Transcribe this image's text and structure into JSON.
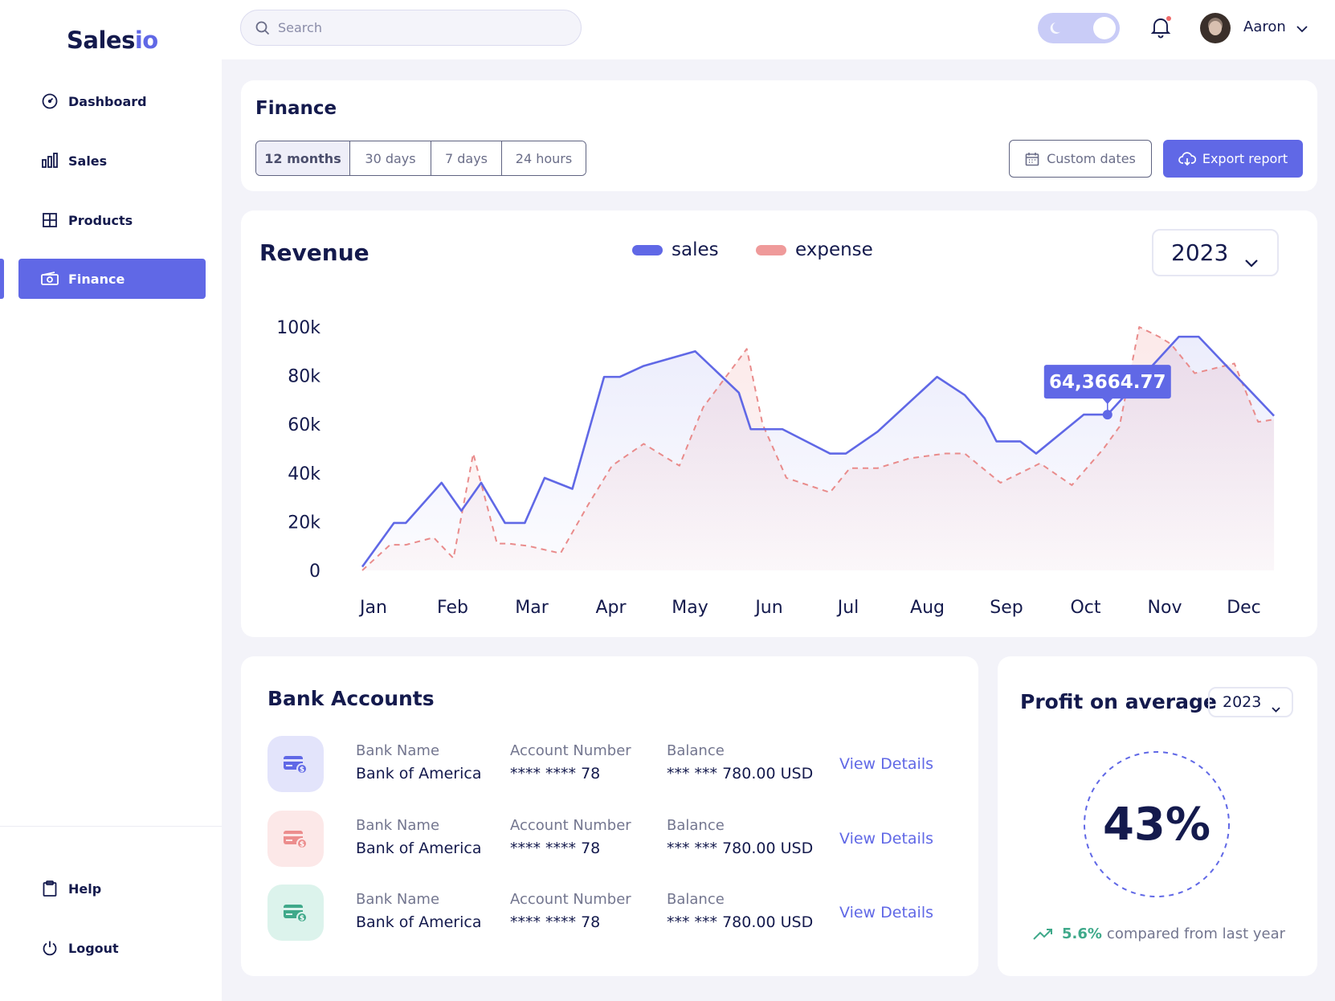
{
  "app": {
    "logo_main": "Sales",
    "logo_accent": "io"
  },
  "sidebar": {
    "items": [
      {
        "label": "Dashboard",
        "icon": "gauge-icon"
      },
      {
        "label": "Sales",
        "icon": "bar-chart-icon"
      },
      {
        "label": "Products",
        "icon": "grid-icon"
      },
      {
        "label": "Finance",
        "icon": "money-icon",
        "active": true
      }
    ],
    "footer": [
      {
        "label": "Help",
        "icon": "clipboard-icon"
      },
      {
        "label": "Logout",
        "icon": "power-icon"
      }
    ]
  },
  "topbar": {
    "search_placeholder": "Search",
    "theme_toggle": "dark-mode",
    "user_name": "Aaron",
    "notification_dot_color": "#ef6b6b"
  },
  "finance": {
    "title": "Finance",
    "ranges": [
      "12 months",
      "30 days",
      "7 days",
      "24 hours"
    ],
    "active_range": "12 months",
    "custom_dates_label": "Custom dates",
    "export_label": "Export report"
  },
  "revenue": {
    "title": "Revenue",
    "year": "2023",
    "legend": {
      "sales": "sales",
      "expense": "expense"
    },
    "tooltip": "64,3664.77"
  },
  "chart_data": {
    "type": "area",
    "categories": [
      "Jan",
      "Feb",
      "Mar",
      "Apr",
      "May",
      "Jun",
      "Jul",
      "Aug",
      "Sep",
      "Oct",
      "Nov",
      "Dec"
    ],
    "y_ticks": [
      "100k",
      "80k",
      "60k",
      "40k",
      "20k",
      "0"
    ],
    "ylim": [
      0,
      100000
    ],
    "grid": false,
    "legend_position": "top-center",
    "series": [
      {
        "name": "sales",
        "color": "#6068e6",
        "line": "solid",
        "x": [
          0,
          0.4,
          0.55,
          1.0,
          1.25,
          1.5,
          1.8,
          2.05,
          2.3,
          2.65,
          3.05,
          3.25,
          3.55,
          4.2,
          4.75,
          4.9,
          5.3,
          5.9,
          6.1,
          6.5,
          7.25,
          7.6,
          7.85,
          8.0,
          8.3,
          8.5,
          9.1,
          9.4,
          10.3,
          10.55,
          11.5
        ],
        "y": [
          1500,
          19500,
          19500,
          36000,
          24500,
          36000,
          19500,
          19500,
          38000,
          33500,
          79500,
          79500,
          84000,
          90000,
          73000,
          58000,
          58000,
          48000,
          48000,
          57000,
          79500,
          72000,
          62500,
          53000,
          53000,
          48000,
          64000,
          64000,
          96000,
          96000,
          63500
        ]
      },
      {
        "name": "expense",
        "color": "#ef9a9a",
        "line": "dashed",
        "x": [
          0,
          0.35,
          0.55,
          0.9,
          1.15,
          1.4,
          1.7,
          1.85,
          2.1,
          2.5,
          2.85,
          3.15,
          3.55,
          4.0,
          4.3,
          4.85,
          5.05,
          5.35,
          5.9,
          6.15,
          6.5,
          6.9,
          7.35,
          7.6,
          8.05,
          8.3,
          8.55,
          8.95,
          9.35,
          9.55,
          9.8,
          10.05,
          10.2,
          10.5,
          11.0,
          11.3,
          11.5
        ],
        "y": [
          0,
          10500,
          10500,
          13500,
          5000,
          48000,
          11000,
          11000,
          10000,
          7000,
          27000,
          43000,
          52000,
          43000,
          67000,
          91000,
          60000,
          38000,
          32000,
          42000,
          42000,
          46000,
          48000,
          48000,
          36000,
          40000,
          44000,
          35000,
          50000,
          59000,
          100000,
          96000,
          93000,
          81000,
          85000,
          61000,
          62000
        ]
      }
    ]
  },
  "bank": {
    "title": "Bank Accounts",
    "labels": {
      "name": "Bank Name",
      "number": "Account Number",
      "balance": "Balance"
    },
    "link_label": "View Details",
    "accounts": [
      {
        "name": "Bank of America",
        "number": "**** **** 78",
        "balance": "*** *** 780.00 USD",
        "icon_color": "#6068e6",
        "bg": "#e3e4fb"
      },
      {
        "name": "Bank of America",
        "number": "**** **** 78",
        "balance": "*** *** 780.00 USD",
        "icon_color": "#ec8d8d",
        "bg": "#fce8e8"
      },
      {
        "name": "Bank of America",
        "number": "**** **** 78",
        "balance": "*** *** 780.00 USD",
        "icon_color": "#3fa98a",
        "bg": "#dcf3ec"
      }
    ]
  },
  "profit": {
    "title": "Profit on average",
    "year": "2023",
    "percent": "43%",
    "change": "5.6%",
    "change_text": "compared from last year"
  },
  "colors": {
    "accent": "#6068e6",
    "text": "#141a4d",
    "positive": "#3fa98a"
  }
}
